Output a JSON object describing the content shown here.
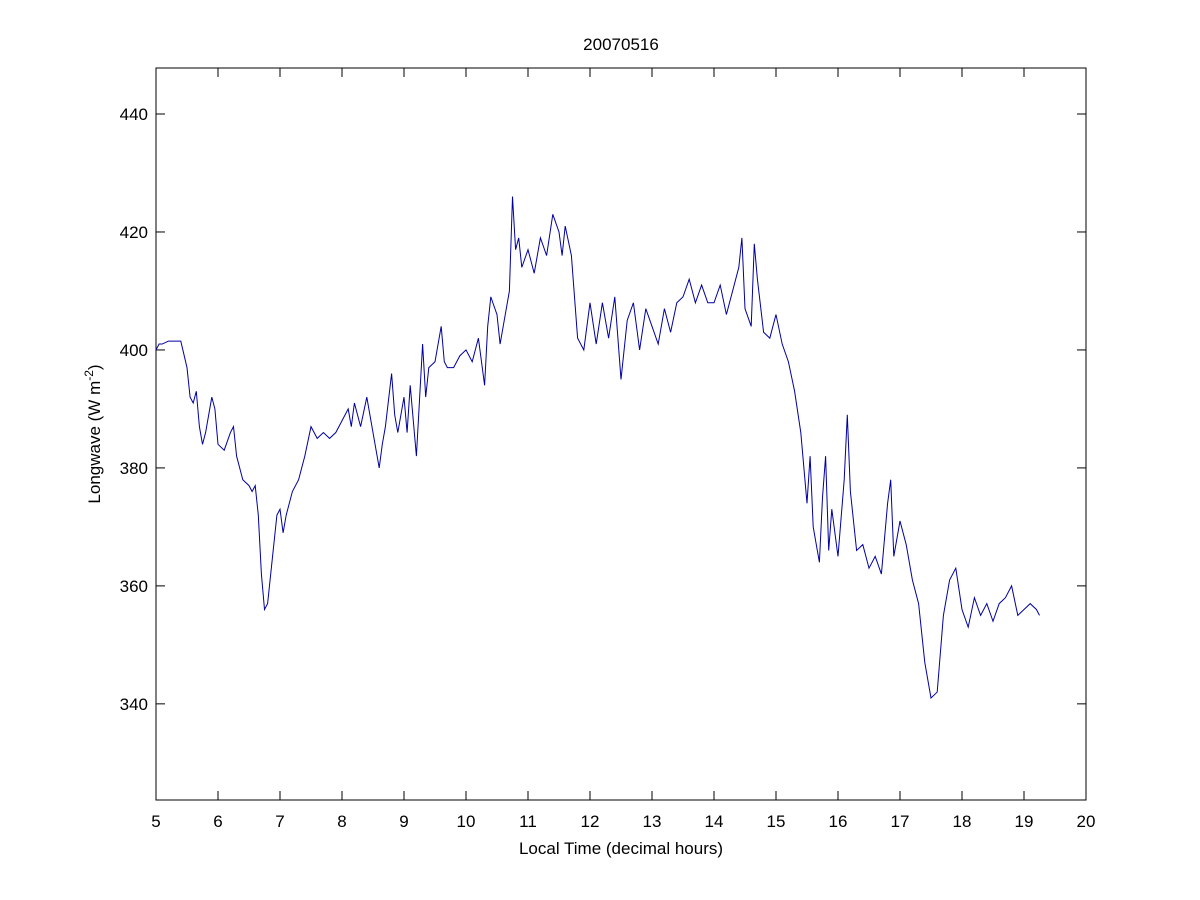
{
  "chart_data": {
    "type": "line",
    "title": "20070516",
    "xlabel": "Local Time (decimal hours)",
    "ylabel_parts": [
      "Longwave (W m",
      "-2",
      ")"
    ],
    "x": [
      5.0,
      5.05,
      5.1,
      5.2,
      5.3,
      5.4,
      5.5,
      5.55,
      5.6,
      5.65,
      5.7,
      5.75,
      5.8,
      5.9,
      5.95,
      6.0,
      6.1,
      6.2,
      6.25,
      6.3,
      6.4,
      6.5,
      6.55,
      6.6,
      6.65,
      6.7,
      6.75,
      6.8,
      6.9,
      6.95,
      7.0,
      7.05,
      7.1,
      7.2,
      7.3,
      7.35,
      7.4,
      7.5,
      7.6,
      7.7,
      7.8,
      7.9,
      8.0,
      8.1,
      8.15,
      8.2,
      8.3,
      8.4,
      8.5,
      8.6,
      8.65,
      8.7,
      8.8,
      8.85,
      8.9,
      9.0,
      9.05,
      9.1,
      9.2,
      9.3,
      9.35,
      9.4,
      9.5,
      9.6,
      9.65,
      9.7,
      9.8,
      9.9,
      10.0,
      10.1,
      10.2,
      10.3,
      10.35,
      10.4,
      10.5,
      10.55,
      10.6,
      10.7,
      10.75,
      10.8,
      10.85,
      10.9,
      11.0,
      11.1,
      11.2,
      11.3,
      11.4,
      11.5,
      11.55,
      11.6,
      11.7,
      11.8,
      11.9,
      12.0,
      12.1,
      12.2,
      12.3,
      12.4,
      12.5,
      12.6,
      12.7,
      12.8,
      12.9,
      13.0,
      13.1,
      13.2,
      13.3,
      13.4,
      13.5,
      13.6,
      13.7,
      13.8,
      13.9,
      14.0,
      14.1,
      14.2,
      14.3,
      14.4,
      14.45,
      14.5,
      14.6,
      14.65,
      14.7,
      14.8,
      14.9,
      15.0,
      15.1,
      15.2,
      15.3,
      15.4,
      15.5,
      15.55,
      15.6,
      15.7,
      15.75,
      15.8,
      15.85,
      15.9,
      16.0,
      16.1,
      16.15,
      16.2,
      16.3,
      16.4,
      16.5,
      16.6,
      16.7,
      16.8,
      16.85,
      16.9,
      17.0,
      17.1,
      17.2,
      17.3,
      17.4,
      17.5,
      17.6,
      17.7,
      17.8,
      17.9,
      18.0,
      18.1,
      18.2,
      18.3,
      18.4,
      18.5,
      18.6,
      18.7,
      18.8,
      18.9,
      19.0,
      19.1,
      19.2,
      19.25
    ],
    "values": [
      400,
      401,
      401,
      401.5,
      401.5,
      401.5,
      397,
      392,
      391,
      393,
      387,
      384,
      386,
      392,
      390,
      384,
      383,
      386,
      387,
      382,
      378,
      377,
      376,
      377,
      372,
      362,
      356,
      357,
      367,
      372,
      373,
      369,
      372,
      376,
      378,
      380,
      382,
      387,
      385,
      386,
      385,
      386,
      388,
      390,
      387,
      391,
      387,
      392,
      386,
      380,
      384,
      387,
      396,
      389,
      386,
      392,
      386,
      394,
      382,
      401,
      392,
      397,
      398,
      404,
      398,
      397,
      397,
      399,
      400,
      398,
      402,
      394,
      404,
      409,
      406,
      401,
      404,
      410,
      426,
      417,
      419,
      414,
      417,
      413,
      419,
      416,
      423,
      420,
      416,
      421,
      416,
      402,
      400,
      408,
      401,
      408,
      402,
      409,
      395,
      405,
      408,
      400,
      407,
      404,
      401,
      407,
      403,
      408,
      409,
      412,
      408,
      411,
      408,
      408,
      411,
      406,
      410,
      414,
      419,
      407,
      404,
      418,
      412,
      403,
      402,
      406,
      401,
      398,
      393,
      386,
      374,
      382,
      370,
      364,
      375,
      382,
      366,
      373,
      365,
      378,
      389,
      376,
      366,
      367,
      363,
      365,
      362,
      374,
      378,
      365,
      371,
      367,
      361,
      357,
      347,
      341,
      342,
      355,
      361,
      363,
      356,
      353,
      358,
      355,
      357,
      354,
      357,
      358,
      360,
      355,
      356,
      357,
      356,
      355
    ],
    "color": "#0000a0",
    "xlim": [
      5,
      20
    ],
    "xticks": [
      5,
      6,
      7,
      8,
      9,
      10,
      11,
      12,
      13,
      14,
      15,
      16,
      17,
      18,
      19,
      20
    ],
    "ylim": [
      323.7,
      447.8
    ],
    "yticks": [
      340,
      360,
      380,
      400,
      420,
      440
    ]
  }
}
